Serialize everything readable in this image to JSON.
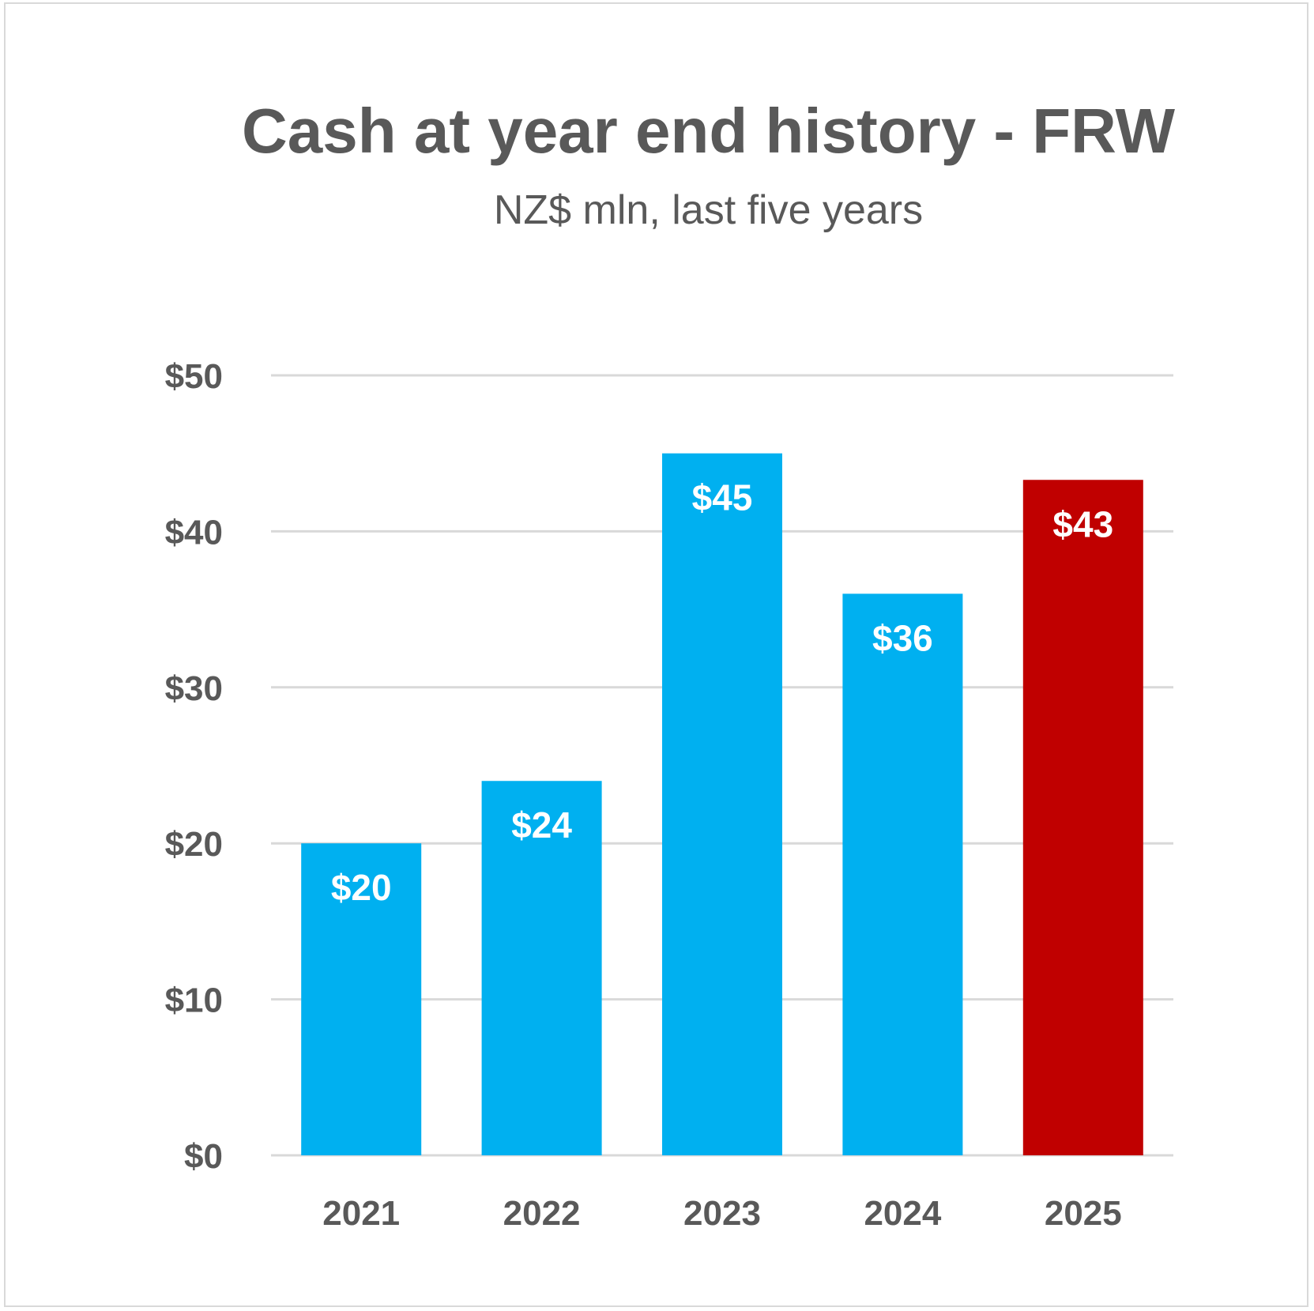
{
  "chart_data": {
    "type": "bar",
    "title": "Cash at year end history - FRW",
    "subtitle": "NZ$ mln, last five years",
    "categories": [
      "2021",
      "2022",
      "2023",
      "2024",
      "2025"
    ],
    "values": [
      20,
      24,
      45,
      36,
      43.3
    ],
    "data_labels": [
      "$20",
      "$24",
      "$45",
      "$36",
      "$43"
    ],
    "bar_colors": [
      "#00B0F0",
      "#00B0F0",
      "#00B0F0",
      "#00B0F0",
      "#C00000"
    ],
    "ylim": [
      0,
      50
    ],
    "yticks": [
      0,
      10,
      20,
      30,
      40,
      50
    ],
    "ytick_labels": [
      "$0",
      "$10",
      "$20",
      "$30",
      "$40",
      "$50"
    ],
    "grid": true,
    "gridline_color": "#d9d9d9",
    "xlabel": "",
    "ylabel": "",
    "legend": "none"
  }
}
